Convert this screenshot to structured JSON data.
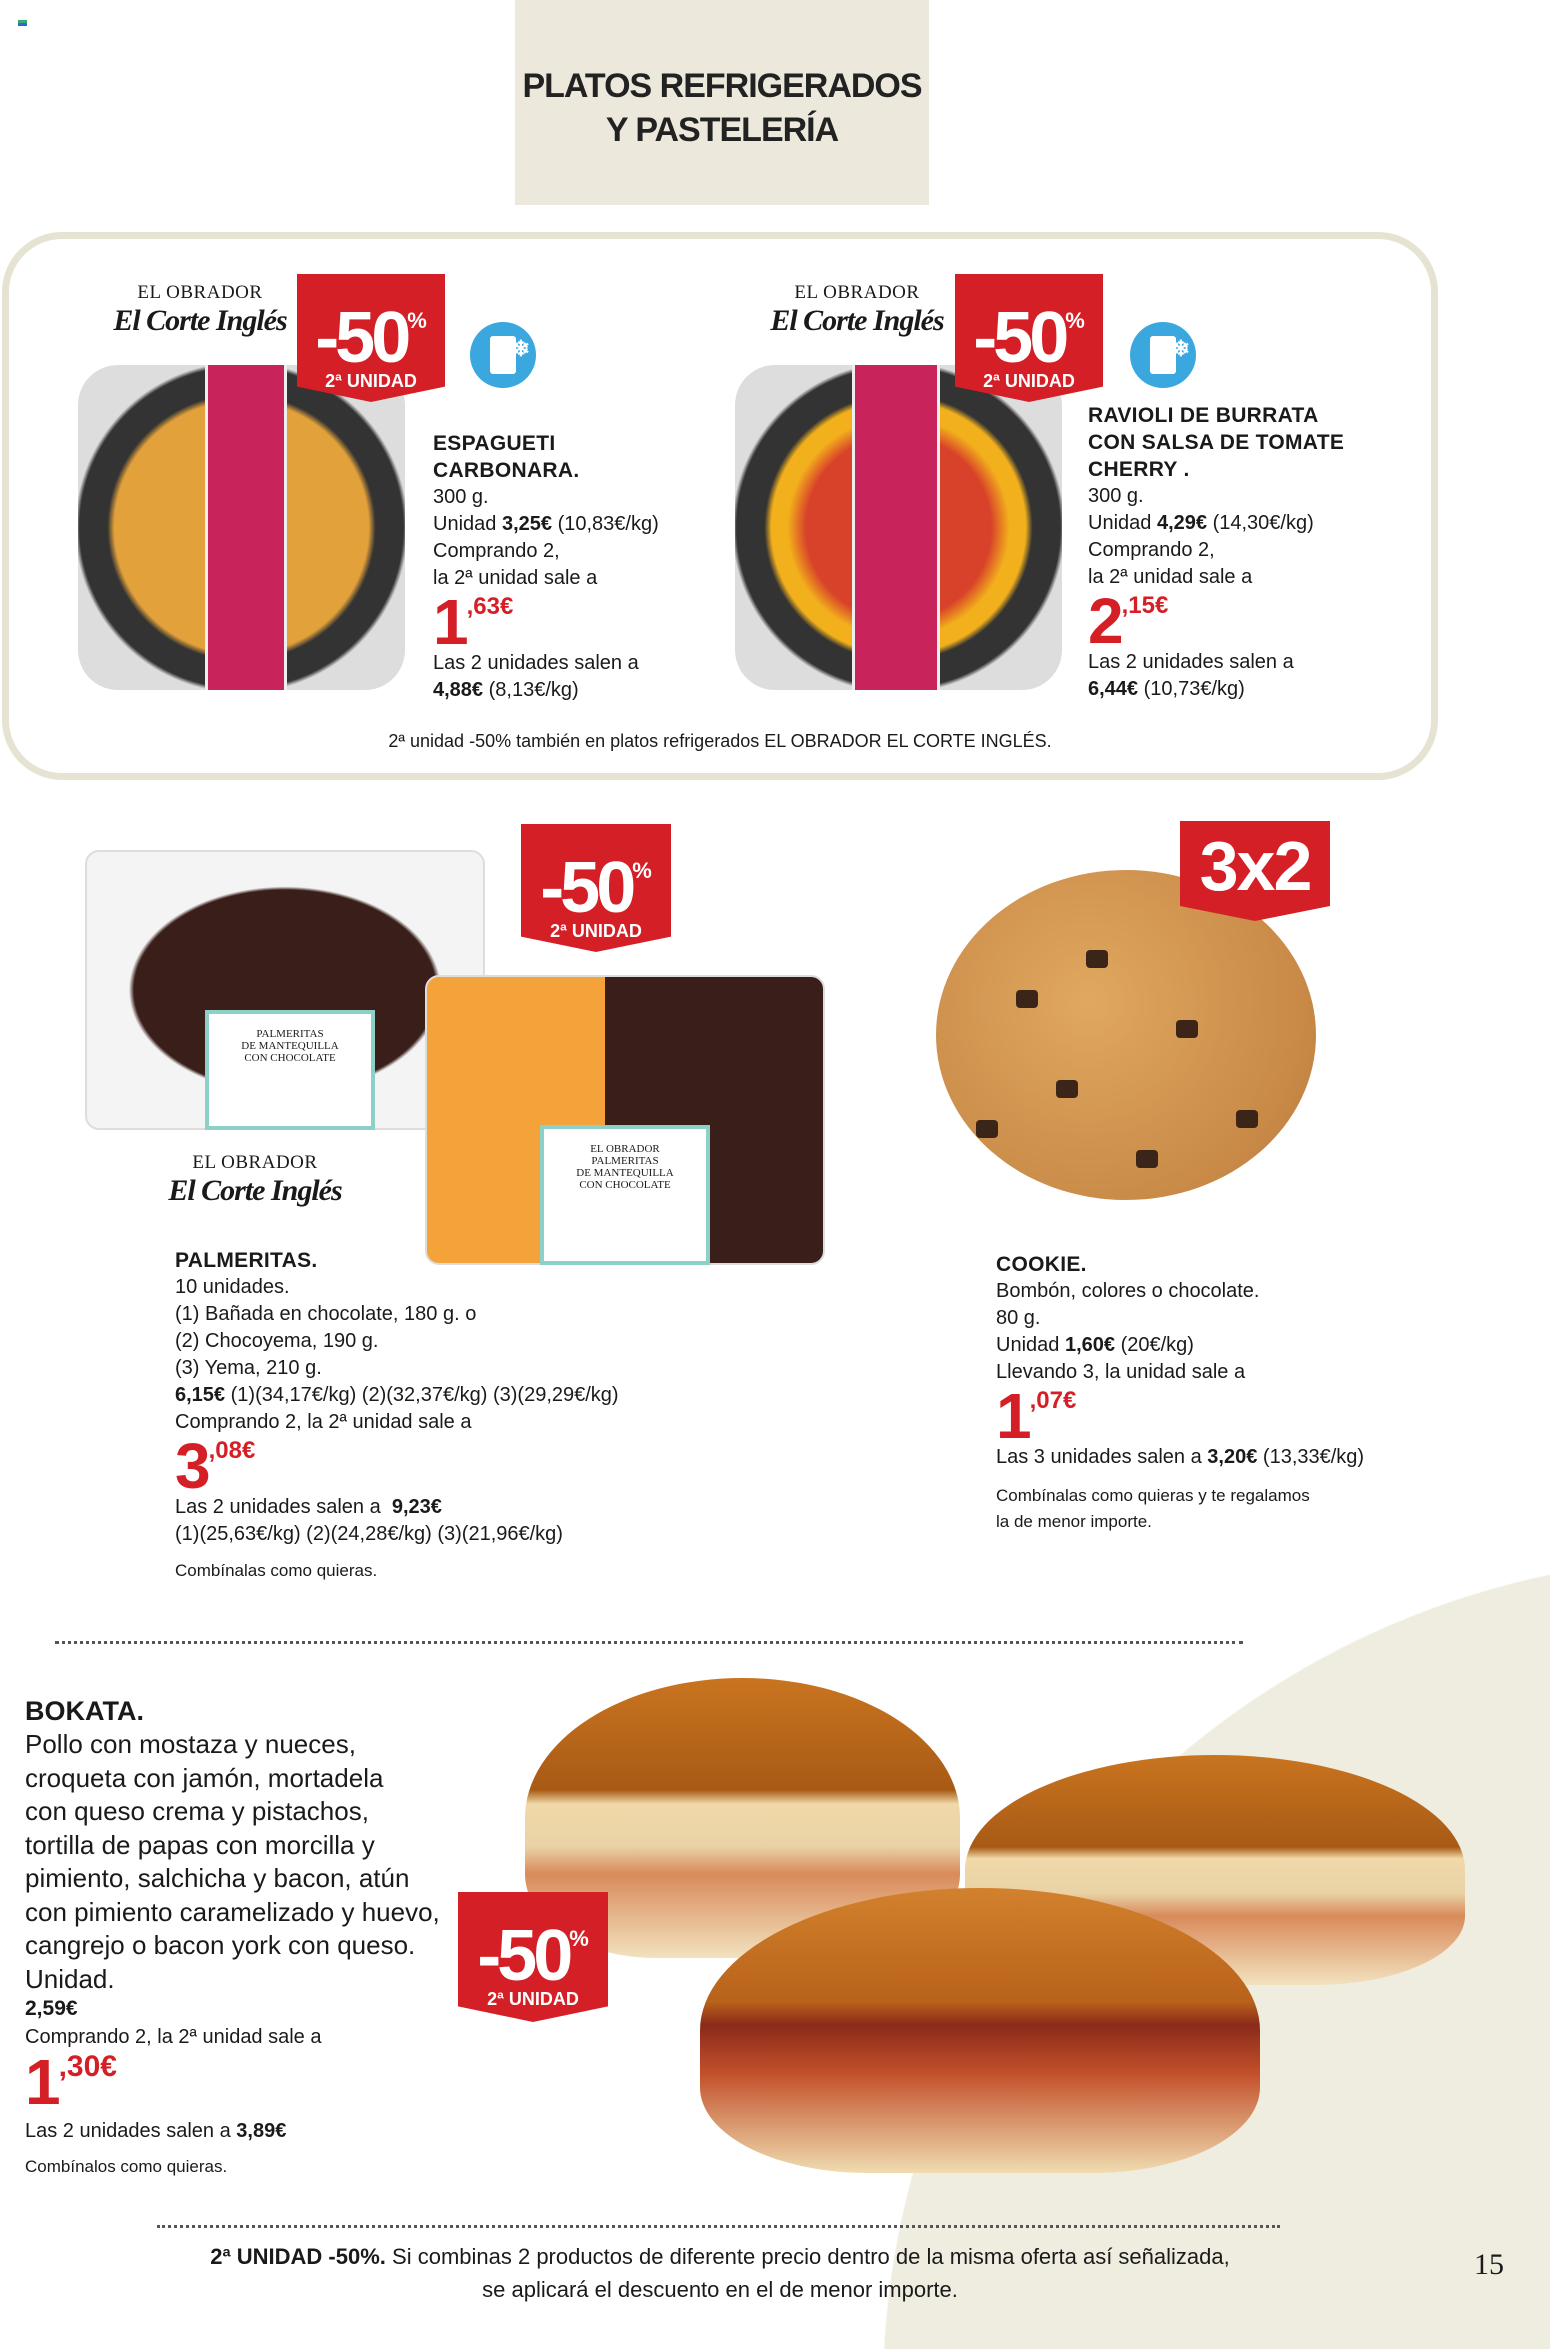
{
  "header": {
    "title_line1": "PLATOS REFRIGERADOS",
    "title_line2": "Y PASTELERÍA"
  },
  "brand": {
    "line1": "EL OBRADOR",
    "line2": "El Corte Inglés"
  },
  "colors": {
    "accent": "#d41f26",
    "beige": "#ece9dc",
    "freezer": "#3aa7de"
  },
  "badges": {
    "pct": "-50",
    "pct_sign": "%",
    "second_unit": "2ª UNIDAD",
    "three_for_two": "3x2"
  },
  "icons": {
    "freezer": "freezer-snowflake-icon"
  },
  "products": {
    "espagueti": {
      "title1": "ESPAGUETI",
      "title2": "CARBONARA.",
      "weight": "300 g.",
      "unit_label": "Unidad",
      "unit_price": "3,25€",
      "unit_kg": "(10,83€/kg)",
      "offer1": "Comprando 2,",
      "offer2": "la 2ª unidad sale a",
      "price_int": "1",
      "price_dec": ",63€",
      "total_label": "Las 2 unidades salen a",
      "total": "4,88€",
      "total_kg": "(8,13€/kg)"
    },
    "ravioli": {
      "title1": "RAVIOLI DE BURRATA",
      "title2": "CON SALSA DE TOMATE",
      "title3": "CHERRY .",
      "weight": "300 g.",
      "unit_label": "Unidad",
      "unit_price": "4,29€",
      "unit_kg": "(14,30€/kg)",
      "offer1": "Comprando 2,",
      "offer2": "la 2ª unidad sale a",
      "price_int": "2",
      "price_dec": ",15€",
      "total_label": "Las 2 unidades salen a",
      "total": "6,44€",
      "total_kg": "(10,73€/kg)"
    },
    "refrigerados_note": "2ª unidad -50% también en platos refrigerados EL OBRADOR EL CORTE INGLÉS.",
    "palmeritas": {
      "title": "PALMERITAS.",
      "l1": "10 unidades.",
      "l2": "(1) Bañada en chocolate, 180 g. o",
      "l3": "(2) Chocoyema, 190 g.",
      "l4": "(3) Yema, 210 g.",
      "price": "6,15€",
      "price_kg": "(1)(34,17€/kg) (2)(32,37€/kg) (3)(29,29€/kg)",
      "offer": "Comprando 2, la 2ª unidad sale a",
      "price_int": "3",
      "price_dec": ",08€",
      "total_label": "Las 2 unidades salen a",
      "total": "9,23€",
      "total_kg": "(1)(25,63€/kg) (2)(24,28€/kg) (3)(21,96€/kg)",
      "note": "Combínalas como quieras.",
      "pack_label1": "PALMERITAS",
      "pack_label2": "DE MANTEQUILLA",
      "pack_label3": "CON CHOCOLATE"
    },
    "cookie": {
      "title": "COOKIE.",
      "l1": "Bombón, colores o chocolate.",
      "l2": "80 g.",
      "unit_label": "Unidad",
      "unit_price": "1,60€",
      "unit_kg": "(20€/kg)",
      "offer": "Llevando 3, la unidad sale a",
      "price_int": "1",
      "price_dec": ",07€",
      "total_label": "Las 3 unidades salen a",
      "total": "3,20€",
      "total_kg": "(13,33€/kg)",
      "note1": "Combínalas como quieras y te regalamos",
      "note2": "la de menor importe."
    },
    "bokata": {
      "title": "BOKATA.",
      "lines": [
        "Pollo con mostaza y nueces,",
        "croqueta con jamón, mortadela",
        "con queso crema y pistachos,",
        "tortilla de papas con morcilla y",
        "pimiento, salchicha y bacon, atún",
        "con pimiento caramelizado y huevo,",
        "cangrejo o bacon york con queso.",
        "Unidad."
      ],
      "price": "2,59€",
      "offer": "Comprando 2, la 2ª unidad sale a",
      "price_int": "1",
      "price_dec": ",30€",
      "total_label": "Las 2 unidades salen a",
      "total": "3,89€",
      "note": "Combínalos como quieras."
    }
  },
  "footer": {
    "bold": "2ª UNIDAD -50%.",
    "line1": "Si combinas 2 productos de diferente precio dentro de la misma oferta así señalizada,",
    "line2": "se aplicará el descuento en el de menor importe."
  },
  "page_number": "15"
}
